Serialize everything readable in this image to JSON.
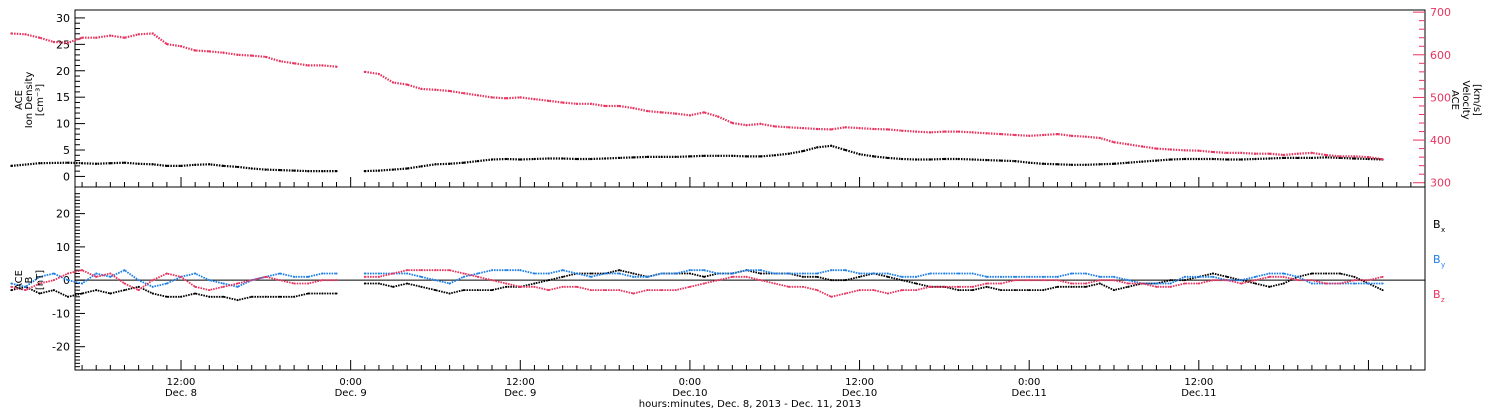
{
  "chart_data": [
    {
      "type": "scatter",
      "panel": "top",
      "ylabel_left": [
        "ACE",
        "Ion Density",
        "[cm⁻³]"
      ],
      "ylabel_right": [
        "ACE",
        "Velocity",
        "[km/s]"
      ],
      "ylim_left": [
        -2,
        31.5
      ],
      "ylim_right": [
        290,
        705
      ],
      "yticks_left": [
        "30",
        "25",
        "20",
        "15",
        "10",
        "5",
        "0"
      ],
      "yticks_right": [
        "700",
        "600",
        "500",
        "400",
        "300"
      ],
      "grid": false,
      "series": [
        {
          "axis": "left",
          "color": "#000000",
          "x_hours": [
            0,
            2,
            4,
            5,
            6,
            7,
            8,
            9,
            10,
            11,
            12,
            13,
            14,
            15,
            16,
            17,
            18,
            19,
            20,
            21,
            22,
            23,
            25,
            26,
            27,
            28,
            29,
            30,
            31,
            32,
            33,
            34,
            35,
            36,
            37,
            38,
            39,
            40,
            41,
            42,
            43,
            44,
            45,
            46,
            47,
            48,
            49,
            50,
            51,
            52,
            53,
            54,
            55,
            56,
            57,
            58,
            59,
            60,
            61,
            62,
            63,
            64,
            65,
            66,
            67,
            68,
            69,
            70,
            71,
            72,
            73,
            74,
            75,
            76,
            77,
            78,
            79,
            80,
            81,
            82,
            83,
            84,
            85,
            86,
            87,
            88,
            89,
            90,
            91,
            92,
            93,
            94,
            95,
            96,
            97
          ],
          "values": [
            2.0,
            2.5,
            2.6,
            2.5,
            2.4,
            2.5,
            2.6,
            2.4,
            2.3,
            2.0,
            2.0,
            2.2,
            2.3,
            2.0,
            1.8,
            1.5,
            1.3,
            1.2,
            1.1,
            1.0,
            1.0,
            1.0,
            1.0,
            1.1,
            1.3,
            1.5,
            1.9,
            2.3,
            2.4,
            2.6,
            2.9,
            3.2,
            3.3,
            3.2,
            3.3,
            3.4,
            3.4,
            3.3,
            3.3,
            3.4,
            3.5,
            3.6,
            3.7,
            3.7,
            3.7,
            3.8,
            3.9,
            3.9,
            3.9,
            3.8,
            3.8,
            4.0,
            4.3,
            4.8,
            5.5,
            5.8,
            5.0,
            4.2,
            3.8,
            3.5,
            3.3,
            3.2,
            3.2,
            3.3,
            3.3,
            3.2,
            3.1,
            3.0,
            2.9,
            2.6,
            2.4,
            2.3,
            2.2,
            2.2,
            2.3,
            2.4,
            2.6,
            2.8,
            3.0,
            3.2,
            3.3,
            3.3,
            3.3,
            3.2,
            3.2,
            3.3,
            3.4,
            3.5,
            3.5,
            3.5,
            3.6,
            3.5,
            3.4,
            3.3,
            3.2
          ]
        },
        {
          "axis": "right",
          "color": "#e8345f",
          "x_hours": [
            0,
            1,
            2,
            3,
            4,
            5,
            6,
            7,
            8,
            9,
            10,
            11,
            12,
            13,
            14,
            15,
            16,
            17,
            18,
            19,
            20,
            21,
            22,
            23,
            25,
            26,
            27,
            28,
            29,
            30,
            31,
            32,
            33,
            34,
            35,
            36,
            37,
            38,
            39,
            40,
            41,
            42,
            43,
            44,
            45,
            46,
            47,
            48,
            49,
            50,
            51,
            52,
            53,
            54,
            55,
            56,
            57,
            58,
            59,
            60,
            61,
            62,
            63,
            64,
            65,
            66,
            67,
            68,
            69,
            70,
            71,
            72,
            73,
            74,
            75,
            76,
            77,
            78,
            79,
            80,
            81,
            82,
            83,
            84,
            85,
            86,
            87,
            88,
            89,
            90,
            91,
            92,
            93,
            94,
            95,
            96,
            97
          ],
          "values": [
            650,
            648,
            640,
            630,
            628,
            640,
            640,
            645,
            640,
            648,
            650,
            625,
            620,
            610,
            608,
            605,
            600,
            598,
            595,
            585,
            580,
            575,
            575,
            572,
            560,
            555,
            535,
            530,
            520,
            518,
            515,
            510,
            505,
            500,
            498,
            500,
            496,
            492,
            488,
            485,
            485,
            480,
            480,
            475,
            468,
            465,
            462,
            458,
            465,
            455,
            440,
            435,
            438,
            432,
            430,
            428,
            426,
            425,
            430,
            428,
            426,
            425,
            422,
            420,
            418,
            420,
            420,
            418,
            416,
            414,
            412,
            410,
            412,
            414,
            410,
            408,
            405,
            395,
            390,
            385,
            380,
            378,
            376,
            375,
            372,
            370,
            370,
            368,
            368,
            365,
            368,
            370,
            365,
            362,
            362,
            360,
            355
          ]
        }
      ]
    },
    {
      "type": "line",
      "panel": "bottom",
      "ylabel_left": [
        "ACE",
        "B",
        "[nT]"
      ],
      "ylim": [
        -27,
        28
      ],
      "yticks": [
        "20",
        "10",
        "0",
        "-10",
        "-20"
      ],
      "zero_line": true,
      "grid": false,
      "series": [
        {
          "name": "Bx",
          "label_base": "B",
          "label_sub": "x",
          "color": "#000000",
          "x_hours": [
            0,
            1,
            2,
            3,
            4,
            5,
            6,
            7,
            8,
            9,
            10,
            11,
            12,
            13,
            14,
            15,
            16,
            17,
            18,
            19,
            20,
            21,
            22,
            23,
            25,
            26,
            27,
            28,
            29,
            30,
            31,
            32,
            33,
            34,
            35,
            36,
            37,
            38,
            39,
            40,
            41,
            42,
            43,
            44,
            45,
            46,
            47,
            48,
            49,
            50,
            51,
            52,
            53,
            54,
            55,
            56,
            57,
            58,
            59,
            60,
            61,
            62,
            63,
            64,
            65,
            66,
            67,
            68,
            69,
            70,
            71,
            72,
            73,
            74,
            75,
            76,
            77,
            78,
            79,
            80,
            81,
            82,
            83,
            84,
            85,
            86,
            87,
            88,
            89,
            90,
            91,
            92,
            93,
            94,
            95,
            96,
            97
          ],
          "values": [
            -3,
            -2,
            -4,
            -3,
            -5,
            -4,
            -3,
            -4,
            -3,
            -2,
            -4,
            -5,
            -5,
            -4,
            -5,
            -5,
            -6,
            -5,
            -5,
            -5,
            -5,
            -4,
            -4,
            -4,
            -1,
            -1,
            -2,
            -1,
            -2,
            -3,
            -4,
            -3,
            -3,
            -3,
            -2,
            -2,
            -1,
            0,
            1,
            2,
            2,
            2,
            3,
            2,
            1,
            2,
            2,
            2,
            1,
            2,
            2,
            3,
            2,
            2,
            2,
            1,
            1,
            0,
            0,
            1,
            2,
            1,
            0,
            -1,
            -2,
            -2,
            -3,
            -3,
            -2,
            -3,
            -3,
            -3,
            -3,
            -2,
            -2,
            -2,
            -1,
            -3,
            -2,
            -1,
            -1,
            0,
            0,
            1,
            2,
            1,
            0,
            -1,
            -2,
            -1,
            1,
            2,
            2,
            2,
            1,
            -1,
            -3
          ]
        },
        {
          "name": "By",
          "label_base": "B",
          "label_sub": "y",
          "color": "#1f7fe8",
          "x_hours": [
            0,
            1,
            2,
            3,
            4,
            5,
            6,
            7,
            8,
            9,
            10,
            11,
            12,
            13,
            14,
            15,
            16,
            17,
            18,
            19,
            20,
            21,
            22,
            23,
            25,
            26,
            27,
            28,
            29,
            30,
            31,
            32,
            33,
            34,
            35,
            36,
            37,
            38,
            39,
            40,
            41,
            42,
            43,
            44,
            45,
            46,
            47,
            48,
            49,
            50,
            51,
            52,
            53,
            54,
            55,
            56,
            57,
            58,
            59,
            60,
            61,
            62,
            63,
            64,
            65,
            66,
            67,
            68,
            69,
            70,
            71,
            72,
            73,
            74,
            75,
            76,
            77,
            78,
            79,
            80,
            81,
            82,
            83,
            84,
            85,
            86,
            87,
            88,
            89,
            90,
            91,
            92,
            93,
            94,
            95,
            96,
            97
          ],
          "values": [
            -1,
            -2,
            1,
            2,
            0,
            -1,
            2,
            1,
            3,
            0,
            -2,
            -1,
            1,
            2,
            0,
            -1,
            -2,
            0,
            1,
            2,
            1,
            1,
            2,
            2,
            2,
            2,
            2,
            2,
            1,
            0,
            -1,
            1,
            2,
            3,
            3,
            3,
            2,
            2,
            3,
            2,
            1,
            2,
            2,
            1,
            1,
            2,
            2,
            3,
            3,
            2,
            2,
            3,
            3,
            2,
            2,
            2,
            2,
            3,
            3,
            2,
            2,
            2,
            1,
            1,
            2,
            2,
            2,
            2,
            1,
            1,
            1,
            1,
            1,
            1,
            2,
            2,
            1,
            1,
            0,
            -1,
            -1,
            -1,
            1,
            1,
            1,
            0,
            0,
            1,
            2,
            2,
            1,
            -1,
            -1,
            -1,
            -1,
            -1,
            -1
          ]
        },
        {
          "name": "Bz",
          "label_base": "B",
          "label_sub": "z",
          "color": "#e8345f",
          "x_hours": [
            0,
            1,
            2,
            3,
            4,
            5,
            6,
            7,
            8,
            9,
            10,
            11,
            12,
            13,
            14,
            15,
            16,
            17,
            18,
            19,
            20,
            21,
            22,
            23,
            25,
            26,
            27,
            28,
            29,
            30,
            31,
            32,
            33,
            34,
            35,
            36,
            37,
            38,
            39,
            40,
            41,
            42,
            43,
            44,
            45,
            46,
            47,
            48,
            49,
            50,
            51,
            52,
            53,
            54,
            55,
            56,
            57,
            58,
            59,
            60,
            61,
            62,
            63,
            64,
            65,
            66,
            67,
            68,
            69,
            70,
            71,
            72,
            73,
            74,
            75,
            76,
            77,
            78,
            79,
            80,
            81,
            82,
            83,
            84,
            85,
            86,
            87,
            88,
            89,
            90,
            91,
            92,
            93,
            94,
            95,
            96,
            97
          ],
          "values": [
            -2,
            -3,
            -1,
            0,
            2,
            3,
            1,
            2,
            -1,
            -3,
            0,
            2,
            1,
            -2,
            -3,
            -2,
            -1,
            0,
            1,
            0,
            -1,
            -1,
            0,
            0,
            1,
            1,
            2,
            3,
            3,
            3,
            3,
            2,
            1,
            0,
            -1,
            -2,
            -2,
            -3,
            -2,
            -2,
            -3,
            -3,
            -3,
            -4,
            -3,
            -3,
            -3,
            -2,
            -1,
            0,
            1,
            1,
            0,
            -1,
            -2,
            -2,
            -3,
            -5,
            -4,
            -3,
            -3,
            -4,
            -3,
            -3,
            -2,
            -2,
            -2,
            -2,
            -1,
            -1,
            0,
            0,
            0,
            0,
            -1,
            -1,
            0,
            0,
            -1,
            -1,
            -2,
            -2,
            -1,
            -1,
            0,
            0,
            -1,
            0,
            1,
            1,
            0,
            0,
            -1,
            -1,
            0,
            0,
            1
          ]
        }
      ]
    }
  ],
  "x_axis": {
    "tick_labels": [
      {
        "time": "12:00",
        "day": "Dec. 8"
      },
      {
        "time": "0:00",
        "day": "Dec. 9"
      },
      {
        "time": "12:00",
        "day": "Dec. 9"
      },
      {
        "time": "0:00",
        "day": "Dec.10"
      },
      {
        "time": "12:00",
        "day": "Dec.10"
      },
      {
        "time": "0:00",
        "day": "Dec.11"
      },
      {
        "time": "12:00",
        "day": "Dec.11"
      }
    ],
    "tick_hours": [
      12,
      24,
      36,
      48,
      60,
      72,
      84
    ],
    "xlabel": "hours:minutes, Dec. 8, 2013 - Dec. 11, 2013",
    "range_hours": [
      4.5,
      100
    ],
    "data_gap_hours": [
      23.2,
      24.0
    ]
  }
}
